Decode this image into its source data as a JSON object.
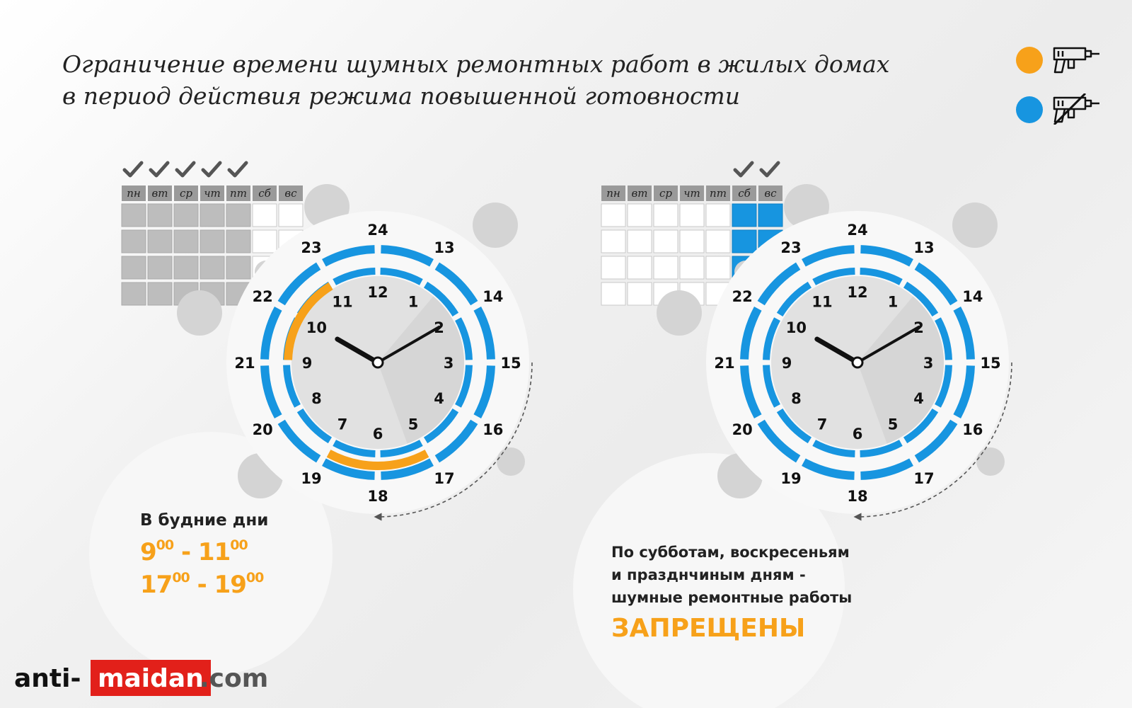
{
  "title": {
    "line1": "Ограничение времени шумных ремонтных работ в жилых домах",
    "line2": "в период действия режима повышенной готовности"
  },
  "legend": {
    "allowed": {
      "color": "#f7a11a",
      "icon": "drill-icon"
    },
    "forbidden": {
      "color": "#1795e0",
      "icon": "drill-crossed-icon"
    }
  },
  "weekdays": [
    "пн",
    "вт",
    "ср",
    "чт",
    "пт",
    "сб",
    "вс"
  ],
  "outer_hours": [
    "24",
    "13",
    "14",
    "15",
    "16",
    "17",
    "18",
    "19",
    "20",
    "21",
    "22",
    "23"
  ],
  "inner_hours": [
    "12",
    "1",
    "2",
    "3",
    "4",
    "5",
    "6",
    "7",
    "8",
    "9",
    "10",
    "11"
  ],
  "clock_left": {
    "checked_days": [
      "пн",
      "вт",
      "ср",
      "чт",
      "пт"
    ],
    "highlight_days": [],
    "allowed_periods": [
      {
        "start": "9:00",
        "end": "11:00"
      },
      {
        "start": "17:00",
        "end": "19:00"
      }
    ]
  },
  "clock_right": {
    "checked_days": [
      "сб",
      "вс"
    ],
    "highlight_days": [
      "сб",
      "вс"
    ],
    "allowed_periods": []
  },
  "weekday_caption": {
    "heading": "В будние дни",
    "range1": {
      "from": "9",
      "from_min": "00",
      "to": "11",
      "to_min": "00"
    },
    "range2": {
      "from": "17",
      "from_min": "00",
      "to": "19",
      "to_min": "00"
    }
  },
  "weekend_caption": {
    "line1": "По субботам, воскресеньям",
    "line2": "и празднчиным дням -",
    "line3": "шумные ремонтные работы",
    "banned": "ЗАПРЕЩЕНЫ"
  },
  "logo": {
    "part1": "anti-",
    "part2": "maidan",
    "part3": ".com"
  }
}
